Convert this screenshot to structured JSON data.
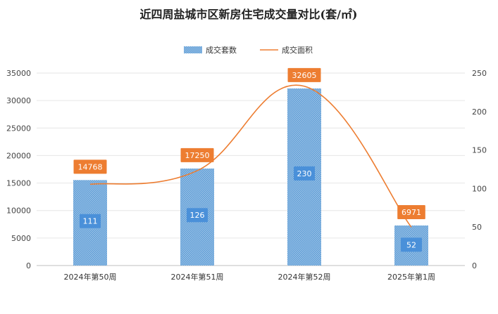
{
  "chart_data": {
    "type": "bar+line",
    "title": "近四周盐城市区新房住宅成交量对比(套/㎡)",
    "categories": [
      "2024年第50周",
      "2024年第51周",
      "2024年第52周",
      "2025年第1周"
    ],
    "series": [
      {
        "name": "成交套数",
        "type": "bar",
        "axis": "right",
        "values": [
          111,
          126,
          230,
          52
        ],
        "color": "#5b9bd5"
      },
      {
        "name": "成交面积",
        "type": "line",
        "axis": "left",
        "values": [
          14768,
          17250,
          32605,
          6971
        ],
        "color": "#ed7d31"
      }
    ],
    "y_left": {
      "min": 0,
      "max": 35000,
      "ticks": [
        0,
        5000,
        10000,
        15000,
        20000,
        25000,
        30000,
        35000
      ]
    },
    "y_right": {
      "min": 0,
      "max": 250,
      "ticks": [
        0,
        50,
        100,
        150,
        200,
        250
      ]
    },
    "bar_labels": [
      "14768",
      "17250",
      "32605",
      "6971"
    ],
    "grid": true,
    "legend_position": "top"
  }
}
